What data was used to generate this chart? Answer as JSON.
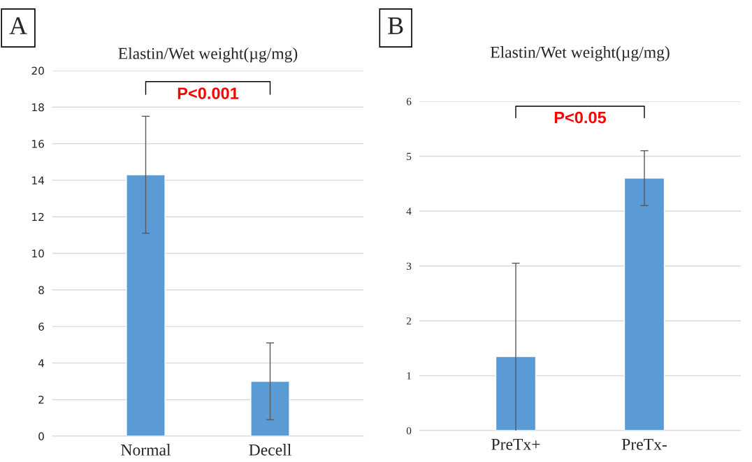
{
  "chart_data": [
    {
      "type": "bar",
      "title": "Elastin/Wet weight(µg/mg)",
      "categories": [
        "Normal",
        "Decell"
      ],
      "values": [
        14.3,
        3.0
      ],
      "errors": [
        3.2,
        2.1
      ],
      "color": "#5b9bd5",
      "ylim": [
        0,
        20
      ],
      "yticks": [
        0,
        2,
        4,
        6,
        8,
        10,
        12,
        14,
        16,
        18,
        20
      ],
      "grid": "y",
      "annotations": [
        "A",
        "P<0.001"
      ]
    },
    {
      "type": "bar",
      "title": "Elastin/Wet weight(µg/mg)",
      "categories": [
        "PreTx+",
        "PreTx-"
      ],
      "values": [
        1.35,
        4.6
      ],
      "errors": [
        1.7,
        0.5
      ],
      "color": "#5b9bd5",
      "ylim": [
        0,
        6
      ],
      "yticks": [
        0,
        1,
        2,
        3,
        4,
        5,
        6
      ],
      "grid": "y",
      "annotations": [
        "B",
        "P<0.05"
      ]
    }
  ]
}
